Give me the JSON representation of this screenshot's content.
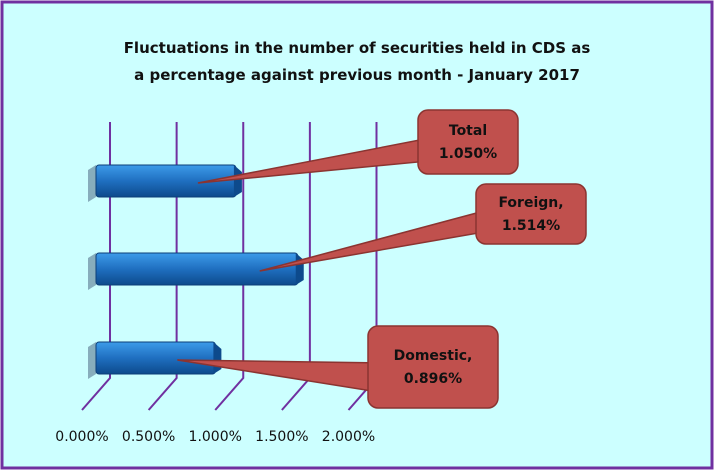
{
  "chart_data": {
    "type": "bar",
    "orientation": "horizontal",
    "title": "Fluctuations in the number of securities held in CDS as a percentage against previous month - January 2017",
    "categories": [
      "Total",
      "Foreign,",
      "Domestic,"
    ],
    "values": [
      1.05,
      1.514,
      0.896
    ],
    "value_labels": [
      "1.050%",
      "1.514%",
      "0.896%"
    ],
    "color": "#1f6fc0",
    "label_color": "#c0504d",
    "xlim": [
      0,
      2
    ],
    "xticks": [
      {
        "value": 0,
        "label": "0.000%"
      },
      {
        "value": 0.5,
        "label": "0.500%"
      },
      {
        "value": 1,
        "label": "1.000%"
      },
      {
        "value": 1.5,
        "label": "1.500%"
      },
      {
        "value": 2,
        "label": "2.000%"
      }
    ],
    "grid": true
  }
}
